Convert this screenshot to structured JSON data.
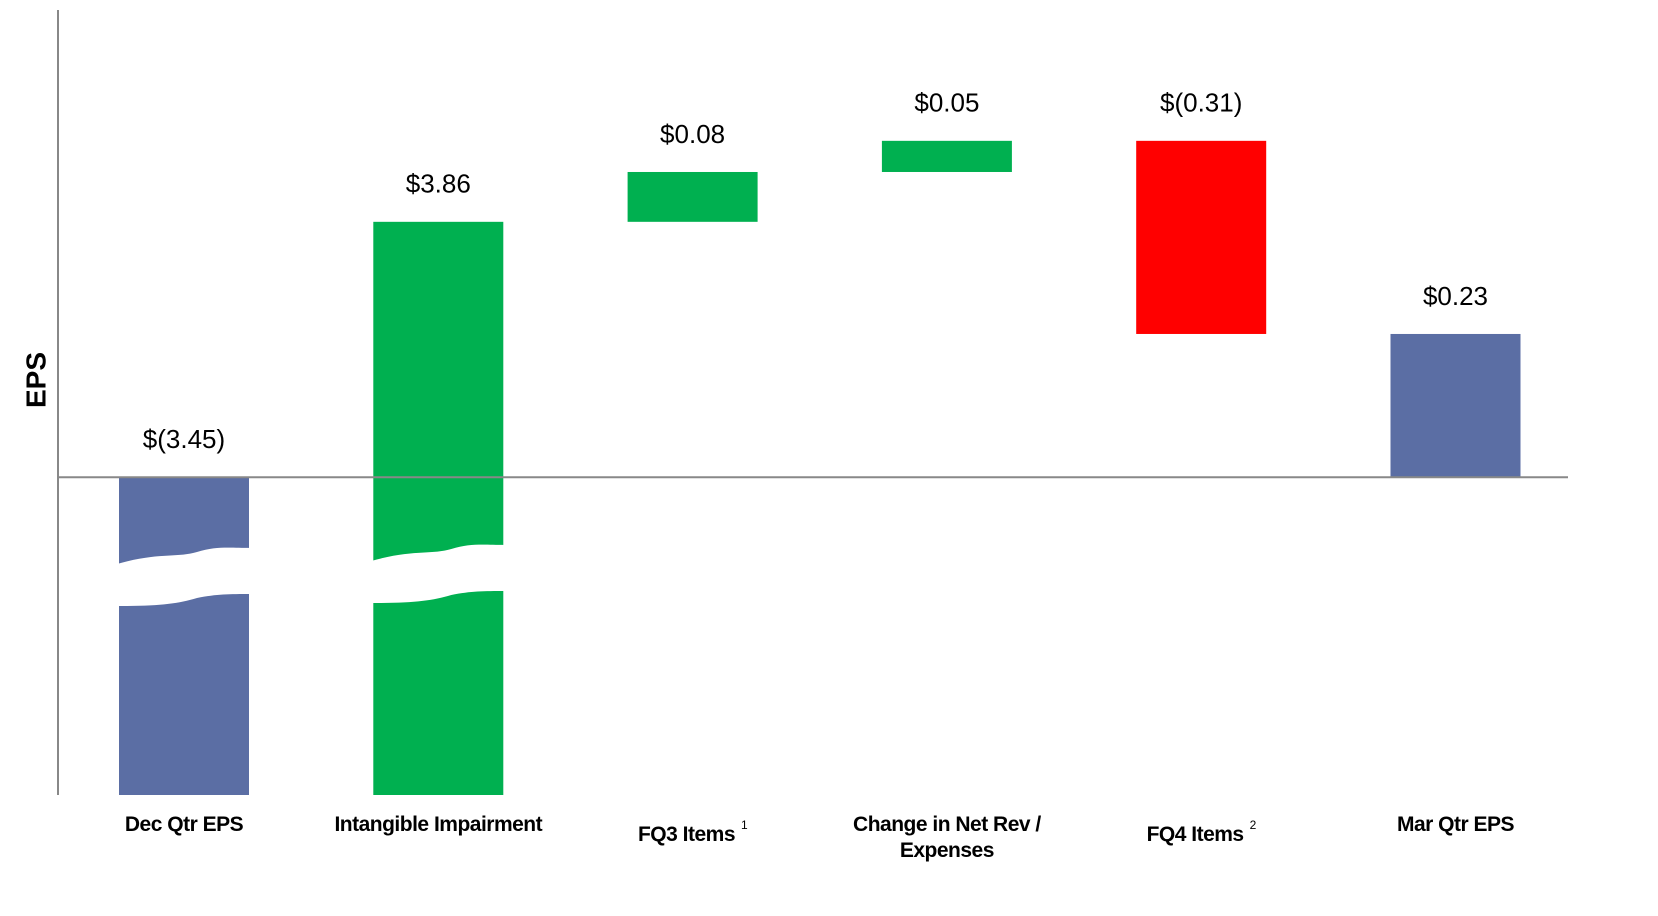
{
  "chart_data": {
    "type": "waterfall",
    "ylabel": "EPS",
    "categories": [
      "Dec Qtr EPS",
      "Intangible Impairment",
      "FQ3 Items",
      "Change in Net Rev / Expenses",
      "FQ4 Items",
      "Mar Qtr EPS"
    ],
    "category_notes": [
      null,
      null,
      "1",
      null,
      "2",
      null
    ],
    "values": [
      -3.45,
      3.86,
      0.08,
      0.05,
      -0.31,
      0.23
    ],
    "value_labels": [
      "$(3.45)",
      "$3.86",
      "$0.08",
      "$0.05",
      "$(0.31)",
      "$0.23"
    ],
    "measure": [
      "absolute",
      "relative",
      "relative",
      "relative",
      "relative",
      "absolute"
    ],
    "colors": [
      "#5b6ea4",
      "#00b050",
      "#00b050",
      "#00b050",
      "#ff0000",
      "#5b6ea4"
    ],
    "ylim": [
      -0.51,
      0.75
    ],
    "axis_break": true
  }
}
